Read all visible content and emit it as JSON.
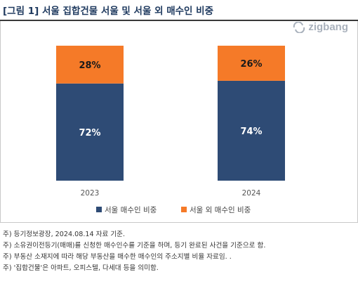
{
  "header": {
    "title": "[그림 1] 서울 집합건물 서울 및 서울 외 매수인 비중",
    "logo_text": "zigbang"
  },
  "chart_data": {
    "type": "bar",
    "stacked": true,
    "categories": [
      "2023",
      "2024"
    ],
    "series": [
      {
        "name": "서울 매수인 비중",
        "values": [
          72,
          74
        ],
        "labels": [
          "72%",
          "74%"
        ],
        "color": "#2e4b75"
      },
      {
        "name": "서울 외 매수인 비중",
        "values": [
          28,
          26
        ],
        "labels": [
          "28%",
          "26%"
        ],
        "color": "#f57a28"
      }
    ],
    "ylim": [
      0,
      100
    ],
    "grid": false,
    "legend": "bottom"
  },
  "notes": [
    "주) 등기정보광장, 2024.08.14 자료 기준.",
    "주) 소유권이전등기(매매)를 신청한 매수인수를 기준을 하며, 등기 완료된 사건을 기준으로 함.",
    "주) 부동산 소재지에 따라 해당 부동산을 매수한 매수인의 주소지별 비율 자료임. .",
    "주) '집합건물'은 아파트, 오피스텔, 다세대 등을 의미함."
  ]
}
